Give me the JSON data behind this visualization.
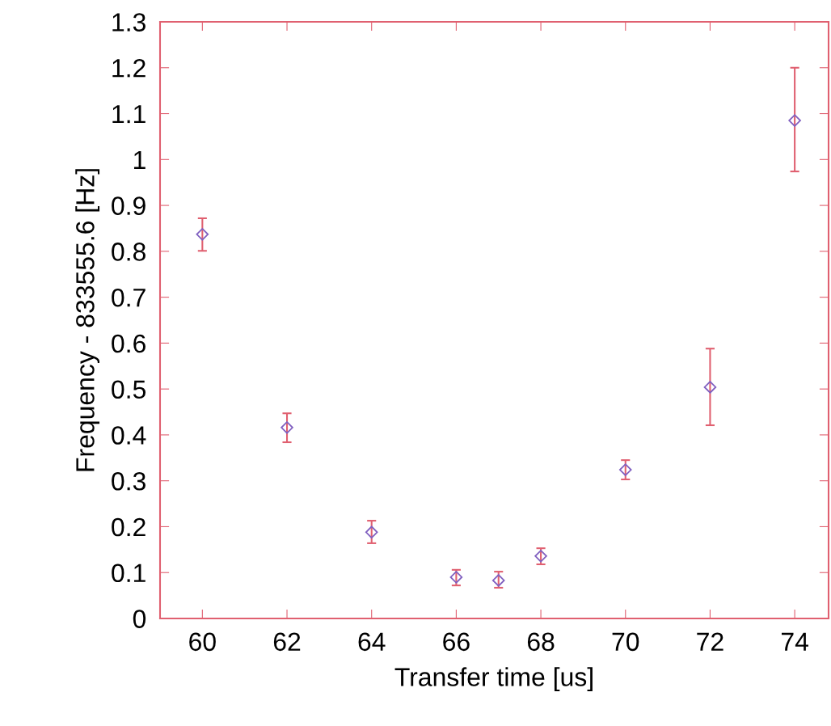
{
  "chart_data": {
    "type": "scatter",
    "xlabel": "Transfer time [us]",
    "ylabel": "Frequency - 833555.6 [Hz]",
    "x": [
      60,
      62,
      64,
      66,
      67,
      68,
      70,
      72,
      74
    ],
    "values": [
      0.837,
      0.416,
      0.188,
      0.09,
      0.083,
      0.136,
      0.324,
      0.504,
      1.085
    ],
    "errors": [
      [
        0.801,
        0.872
      ],
      [
        0.384,
        0.447
      ],
      [
        0.164,
        0.213
      ],
      [
        0.072,
        0.106
      ],
      [
        0.067,
        0.102
      ],
      [
        0.118,
        0.153
      ],
      [
        0.303,
        0.345
      ],
      [
        0.421,
        0.588
      ],
      [
        0.974,
        1.2
      ]
    ],
    "color": "#8060c0",
    "marker": "diamond",
    "grid": false,
    "xlim": [
      59,
      74.8
    ],
    "xticks": [
      60,
      62,
      64,
      66,
      68,
      70,
      72,
      74
    ],
    "ylim": [
      0,
      1.3
    ],
    "yticks": [
      0,
      0.1,
      0.2,
      0.3,
      0.4,
      0.5,
      0.6,
      0.7,
      0.8,
      0.9,
      1,
      1.1,
      1.2,
      1.3
    ]
  }
}
